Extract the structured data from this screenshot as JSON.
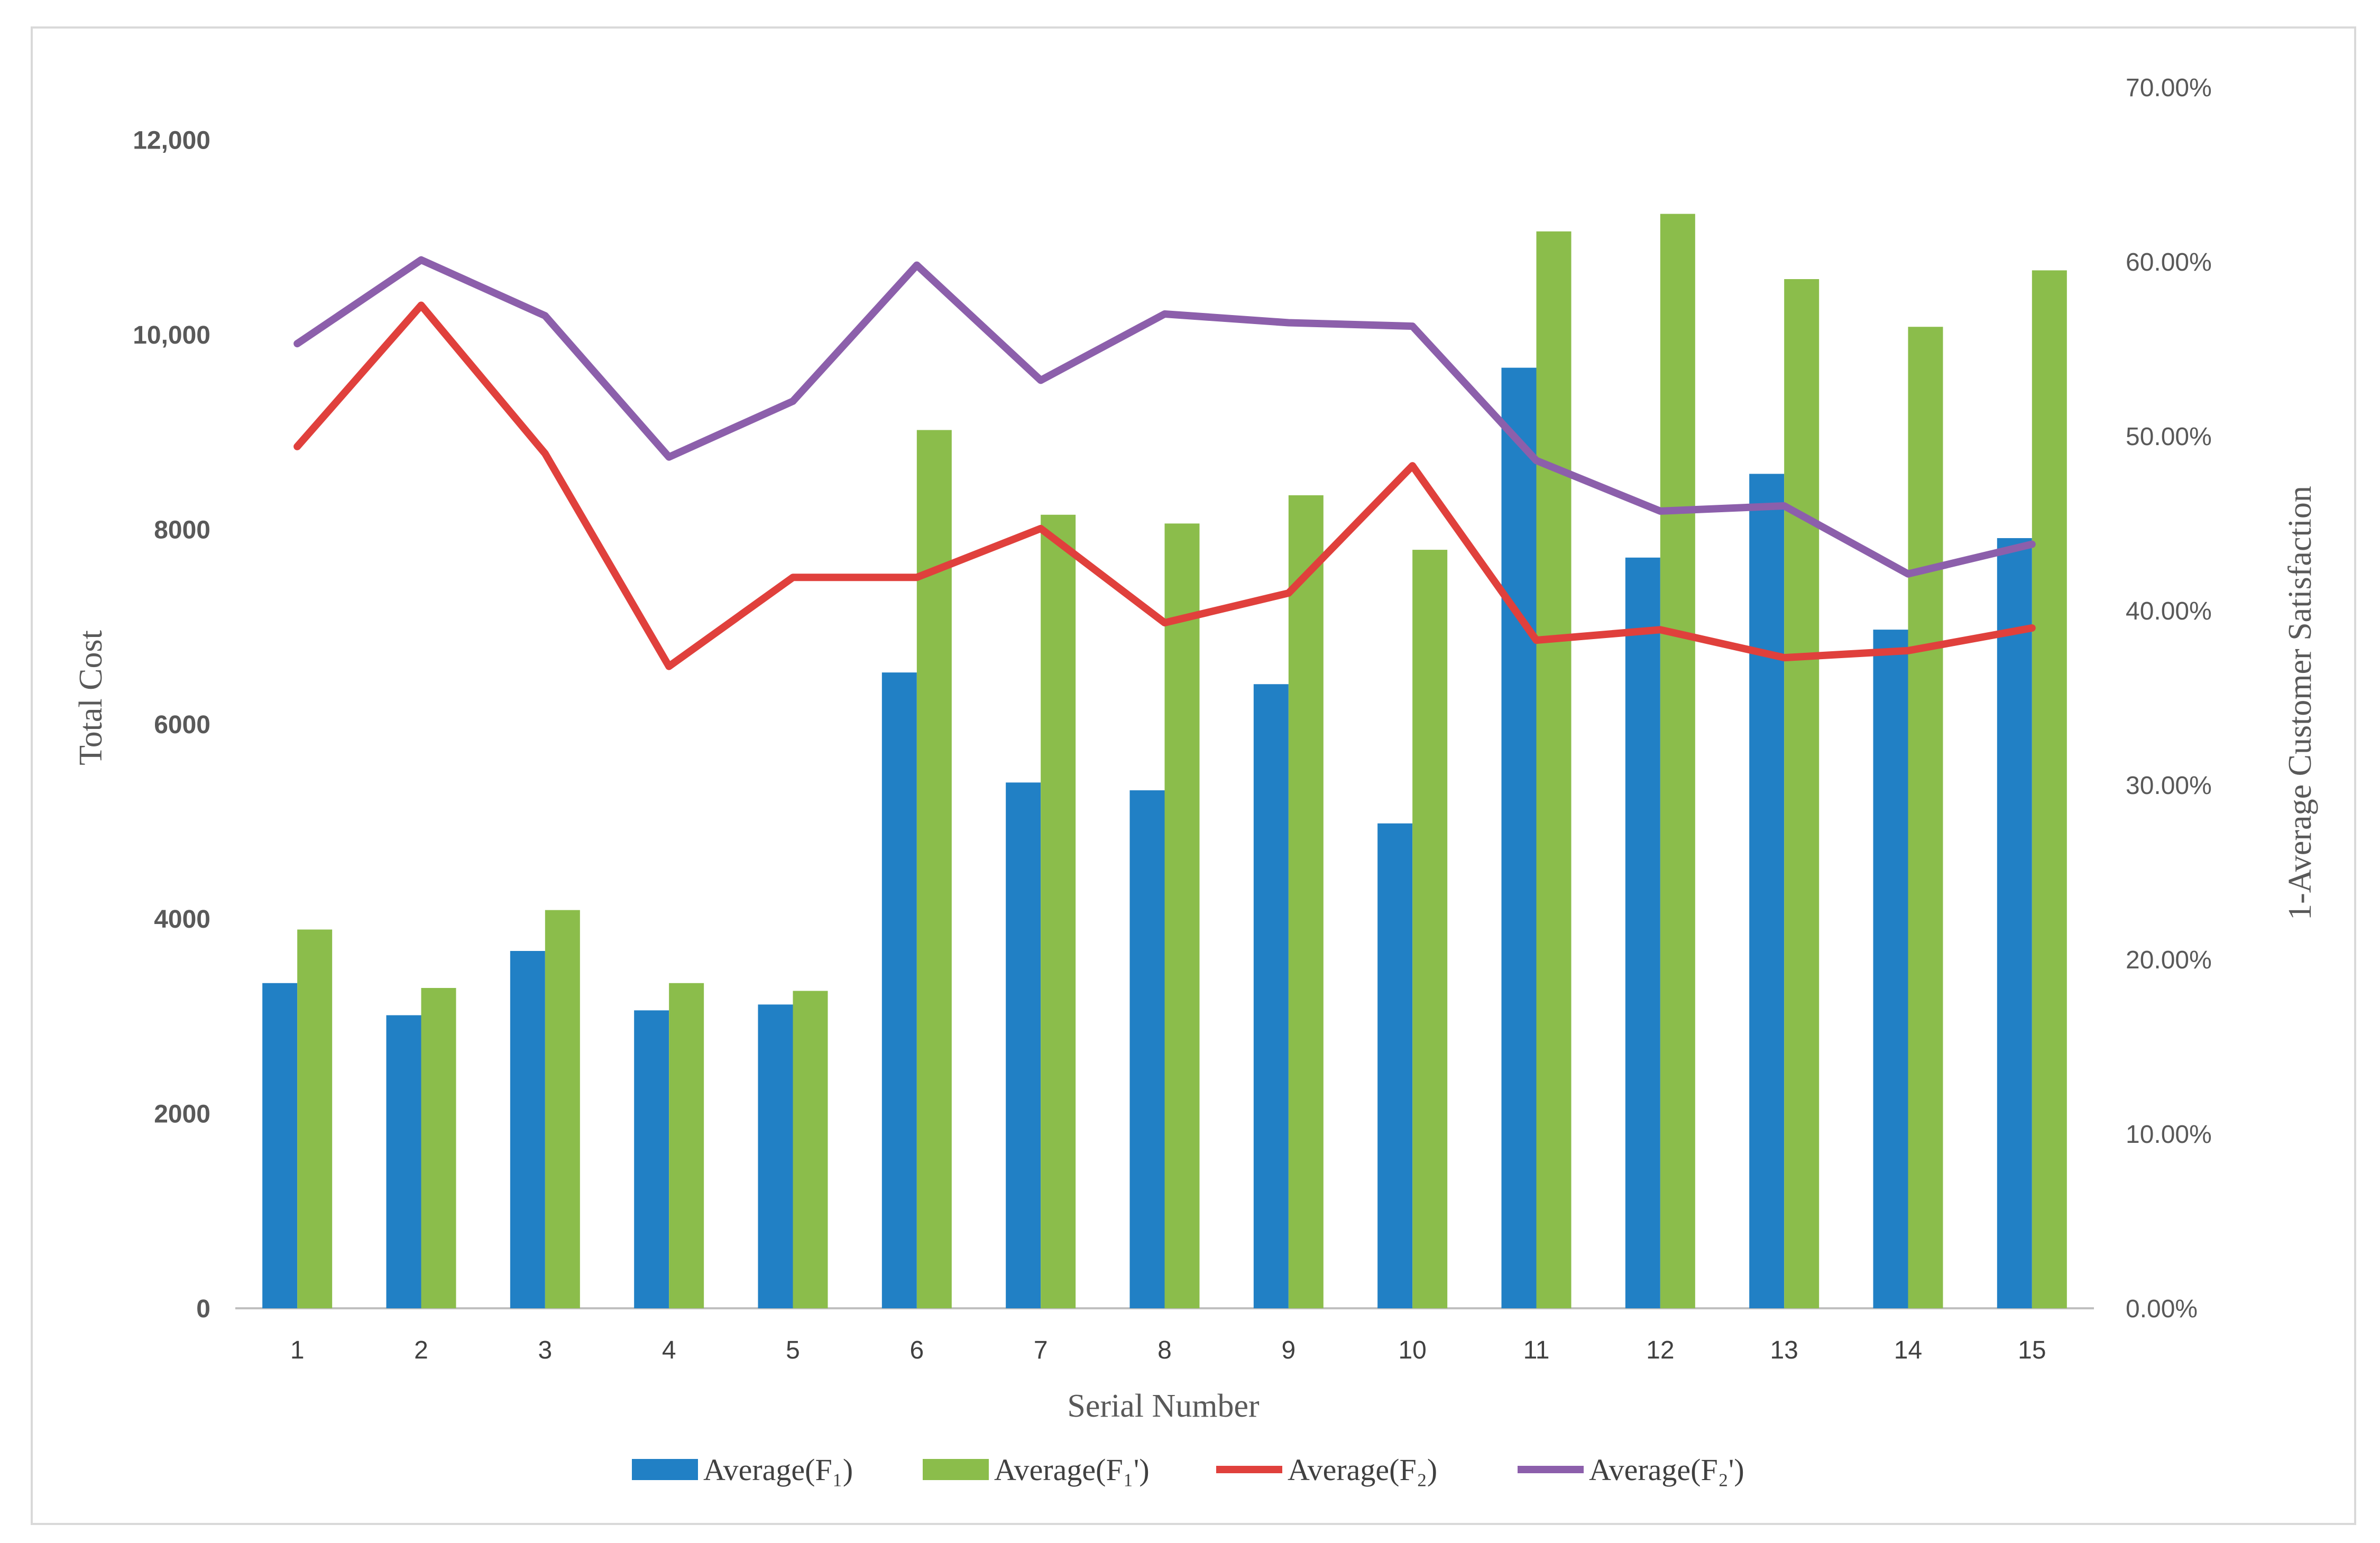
{
  "chart_data": {
    "type": "bar",
    "categories": [
      "1",
      "2",
      "3",
      "4",
      "5",
      "6",
      "7",
      "8",
      "9",
      "10",
      "11",
      "12",
      "13",
      "14",
      "15"
    ],
    "xlabel": "Serial Number",
    "ylabel": "Total Cost",
    "y2label": "1-Average Customer Satisfaction",
    "left_ticks": [
      {
        "value": 0,
        "label": "0"
      },
      {
        "value": 2000,
        "label": "2000"
      },
      {
        "value": 4000,
        "label": "4000"
      },
      {
        "value": 6000,
        "label": "6000"
      },
      {
        "value": 8000,
        "label": "8000"
      },
      {
        "value": 10000,
        "label": "10,000"
      },
      {
        "value": 12000,
        "label": "12,000"
      }
    ],
    "right_ticks": [
      {
        "value": 0.0,
        "label": "0.00%"
      },
      {
        "value": 0.1,
        "label": "10.00%"
      },
      {
        "value": 0.2,
        "label": "20.00%"
      },
      {
        "value": 0.3,
        "label": "30.00%"
      },
      {
        "value": 0.4,
        "label": "40.00%"
      },
      {
        "value": 0.5,
        "label": "50.00%"
      },
      {
        "value": 0.6,
        "label": "60.00%"
      },
      {
        "value": 0.7,
        "label": "70.00%"
      }
    ],
    "series": [
      {
        "name": "Average(F₁)",
        "type": "bar",
        "axis": "left",
        "color": "#2180c5",
        "values": [
          3340,
          3010,
          3670,
          3060,
          3120,
          6530,
          5400,
          5320,
          6410,
          4980,
          9660,
          7710,
          8570,
          6970,
          7910
        ]
      },
      {
        "name": "Average(F₁')",
        "type": "bar",
        "axis": "left",
        "color": "#8bbd4b",
        "values": [
          3890,
          3290,
          4090,
          3340,
          3260,
          9020,
          8150,
          8060,
          8350,
          7790,
          11060,
          11240,
          10570,
          10080,
          10660
        ]
      },
      {
        "name": "Average(F₂)",
        "type": "line",
        "axis": "right",
        "color": "#e0403c",
        "values": [
          0.494,
          0.575,
          0.49,
          0.368,
          0.419,
          0.419,
          0.447,
          0.393,
          0.41,
          0.483,
          0.383,
          0.389,
          0.373,
          0.377,
          0.39
        ]
      },
      {
        "name": "Average(F₂')",
        "type": "line",
        "axis": "right",
        "color": "#8c5fab",
        "values": [
          0.553,
          0.601,
          0.569,
          0.488,
          0.52,
          0.598,
          0.532,
          0.57,
          0.565,
          0.563,
          0.486,
          0.457,
          0.46,
          0.421,
          0.438
        ]
      }
    ]
  }
}
